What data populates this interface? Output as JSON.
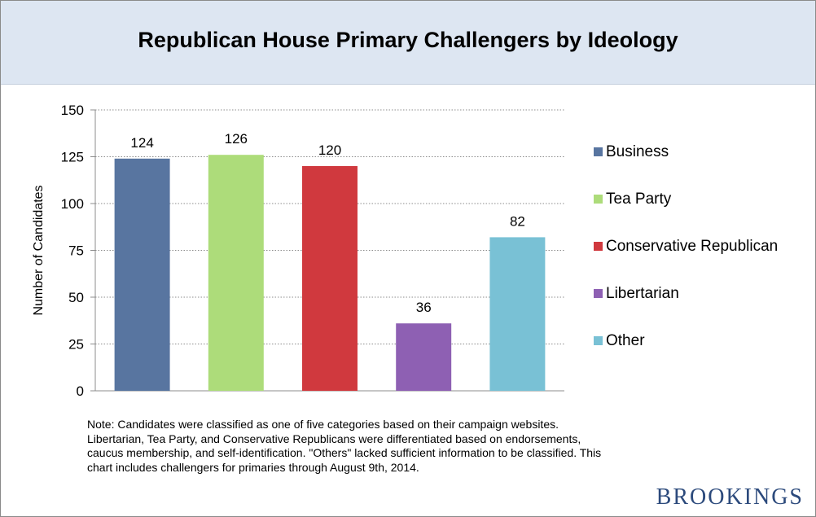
{
  "chart_data": {
    "type": "bar",
    "title": "Republican House Primary Challengers by Ideology",
    "xlabel": "",
    "ylabel": "Number of Candidates",
    "ylim": [
      0,
      150
    ],
    "yticks": [
      0,
      25,
      50,
      75,
      100,
      125,
      150
    ],
    "grid": true,
    "legend_position": "right",
    "categories": [
      "Business",
      "Tea Party",
      "Conservative Republican",
      "Libertarian",
      "Other"
    ],
    "values": [
      124,
      126,
      120,
      36,
      82
    ],
    "data_labels": [
      "124",
      "126",
      "120",
      "36",
      "82"
    ],
    "colors": [
      "#5875a0",
      "#addc7a",
      "#d0393e",
      "#8e60b3",
      "#79c1d5"
    ]
  },
  "note": "Note: Candidates were classified as one of five categories based on their campaign websites. Libertarian, Tea Party, and Conservative Republicans were differentiated based on endorsements, caucus membership, and self-identification. \"Others\" lacked sufficient information to be classified.  This chart includes challengers for primaries through August 9th, 2014.",
  "brand": "BROOKINGS"
}
